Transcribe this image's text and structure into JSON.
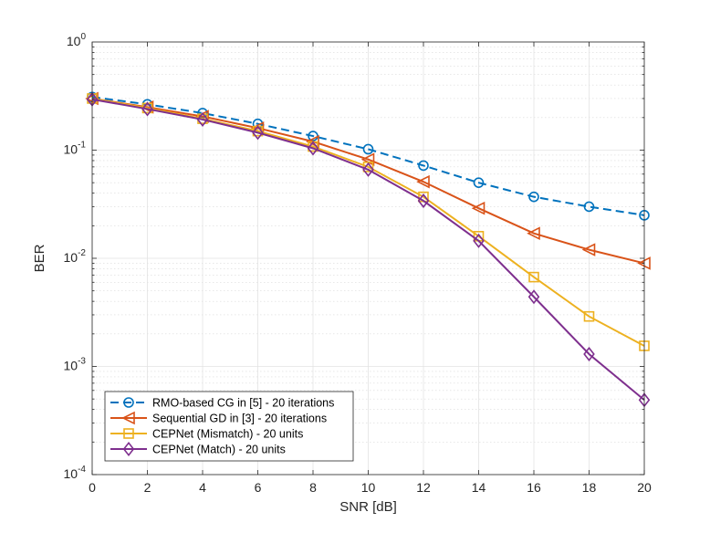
{
  "chart_data": {
    "type": "line",
    "title": "",
    "xlabel": "SNR [dB]",
    "ylabel": "BER",
    "yscale": "log",
    "xlim": [
      0,
      20
    ],
    "ylim": [
      0.0001,
      1
    ],
    "grid": true,
    "legend_position": "bottom-left",
    "x": [
      0,
      2,
      4,
      6,
      8,
      10,
      12,
      14,
      16,
      18,
      20
    ],
    "x_ticks": [
      "0",
      "2",
      "4",
      "6",
      "8",
      "10",
      "12",
      "14",
      "16",
      "18",
      "20"
    ],
    "y_ticks": [
      {
        "base": "10",
        "exp": "0"
      },
      {
        "base": "10",
        "exp": "-1"
      },
      {
        "base": "10",
        "exp": "-2"
      },
      {
        "base": "10",
        "exp": "-3"
      },
      {
        "base": "10",
        "exp": "-4"
      }
    ],
    "series": [
      {
        "name": "RMO-based CG in [5] - 20 iterations",
        "color": "#0072BD",
        "dash": "dashed",
        "marker": "circle",
        "values": [
          0.31,
          0.265,
          0.22,
          0.175,
          0.135,
          0.102,
          0.072,
          0.05,
          0.037,
          0.03,
          0.025
        ]
      },
      {
        "name": "Sequential GD in [3] - 20 iterations",
        "color": "#D95319",
        "dash": "solid",
        "marker": "triangle-left",
        "values": [
          0.3,
          0.25,
          0.205,
          0.16,
          0.12,
          0.082,
          0.051,
          0.029,
          0.017,
          0.012,
          0.009
        ]
      },
      {
        "name": "CEPNet (Mismatch) - 20 units",
        "color": "#EDB120",
        "dash": "solid",
        "marker": "square",
        "values": [
          0.3,
          0.245,
          0.195,
          0.15,
          0.108,
          0.07,
          0.037,
          0.016,
          0.0067,
          0.0029,
          0.00155
        ]
      },
      {
        "name": "CEPNet (Match) - 20 units",
        "color": "#7E2F8E",
        "dash": "solid",
        "marker": "diamond",
        "values": [
          0.295,
          0.24,
          0.192,
          0.145,
          0.104,
          0.066,
          0.034,
          0.0145,
          0.0044,
          0.0013,
          0.00049
        ]
      }
    ]
  }
}
